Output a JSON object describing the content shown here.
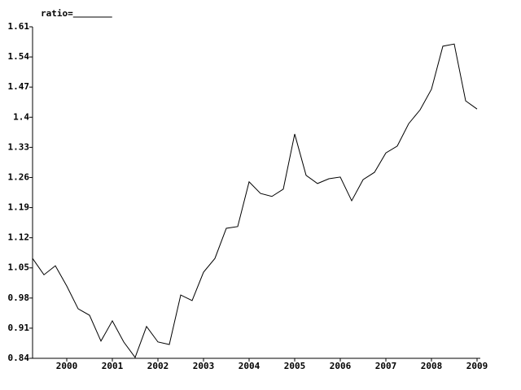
{
  "chart_data": {
    "type": "line",
    "series": [
      {
        "name": "ratio=",
        "color": "#000000",
        "values": [
          1.072,
          1.034,
          1.055,
          1.008,
          0.955,
          0.94,
          0.88,
          0.927,
          0.878,
          0.842,
          0.914,
          0.878,
          0.872,
          0.987,
          0.974,
          1.04,
          1.072,
          1.142,
          1.146,
          1.25,
          1.223,
          1.216,
          1.233,
          1.361,
          1.265,
          1.246,
          1.257,
          1.261,
          1.206,
          1.255,
          1.272,
          1.317,
          1.333,
          1.385,
          1.417,
          1.465,
          1.565,
          1.57,
          1.438,
          1.419
        ]
      }
    ],
    "x": [
      1999.25,
      1999.5,
      1999.75,
      2000,
      2000.25,
      2000.5,
      2000.75,
      2001,
      2001.25,
      2001.5,
      2001.75,
      2002,
      2002.25,
      2002.5,
      2002.75,
      2003,
      2003.25,
      2003.5,
      2003.75,
      2004,
      2004.25,
      2004.5,
      2004.75,
      2005,
      2005.25,
      2005.5,
      2005.75,
      2006,
      2006.25,
      2006.5,
      2006.75,
      2007,
      2007.25,
      2007.5,
      2007.75,
      2008,
      2008.25,
      2008.5,
      2008.75,
      2009
    ],
    "xlim": [
      1999.25,
      2009
    ],
    "xticks": [
      2000,
      2001,
      2002,
      2003,
      2004,
      2005,
      2006,
      2007,
      2008,
      2009
    ],
    "ylim": [
      0.84,
      1.61
    ],
    "yticks": [
      0.84,
      0.91,
      0.98,
      1.05,
      1.12,
      1.19,
      1.26,
      1.33,
      1.4,
      1.47,
      1.54,
      1.61
    ]
  }
}
